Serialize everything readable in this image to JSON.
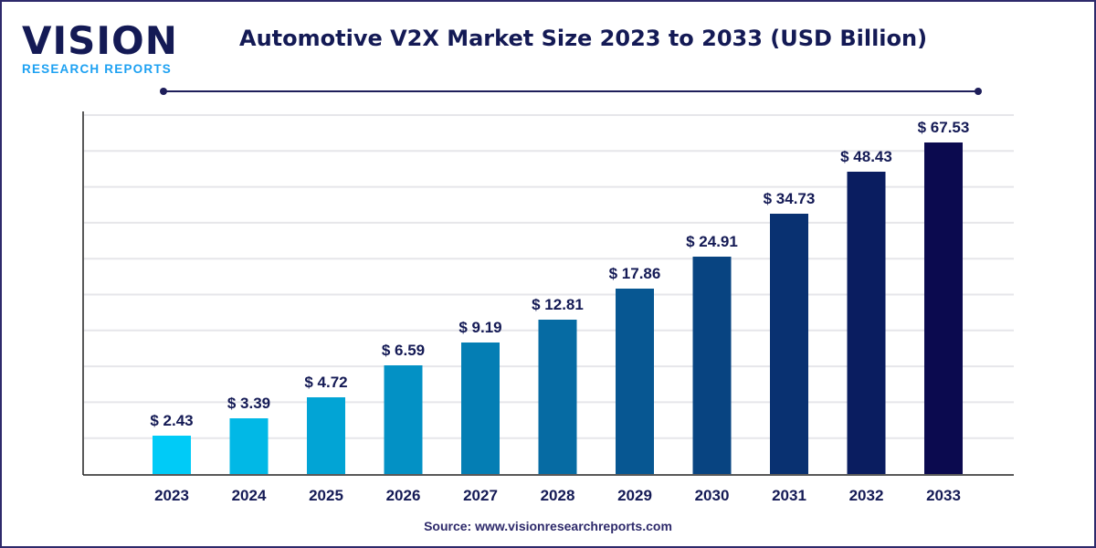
{
  "logo": {
    "word": "VISION",
    "sub": "RESEARCH REPORTS"
  },
  "source": "Source: www.visionresearchreports.com",
  "colors": {
    "bar_start": "#00cbf7",
    "bar_end": "#0b0a4f",
    "text": "#141a55",
    "grid": "#e6e6ea"
  },
  "chart_data": {
    "type": "bar",
    "title": "Automotive V2X Market Size 2023 to 2033 (USD Billion)",
    "categories": [
      "2023",
      "2024",
      "2025",
      "2026",
      "2027",
      "2028",
      "2029",
      "2030",
      "2031",
      "2032",
      "2033"
    ],
    "values": [
      2.43,
      3.39,
      4.72,
      6.59,
      9.19,
      12.81,
      17.86,
      24.91,
      34.73,
      48.43,
      67.53
    ],
    "labels": [
      "$ 2.43",
      "$ 3.39",
      "$ 4.72",
      "$ 6.59",
      "$ 9.19",
      "$ 12.81",
      "$ 17.86",
      "$ 24.91",
      "$ 34.73",
      "$ 48.43",
      "$ 67.53"
    ],
    "xlabel": "",
    "ylabel": "",
    "grid": true,
    "legend": "none"
  }
}
